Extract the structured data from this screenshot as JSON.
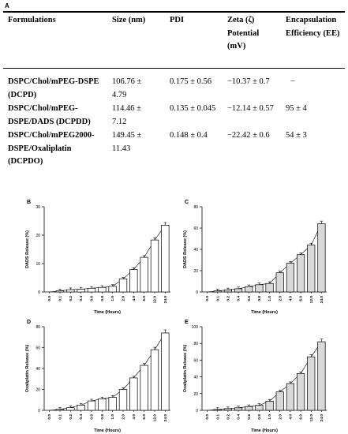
{
  "table": {
    "panel_label": "A",
    "headers": [
      "Formulations",
      "Size (nm)",
      "PDI",
      "Zeta (ζ) Potential (mV)",
      "Encapsulation Efficiency (EE)"
    ],
    "rows": [
      {
        "formulation": "DSPC/Chol/mPEG-DSPE (DCPD)",
        "size": "106.76 ± 4.79",
        "pdi": "0.175 ± 0.56",
        "zeta": "−10.37 ± 0.7",
        "ee": "−"
      },
      {
        "formulation": "DSPC/Chol/mPEG-DSPE/DADS (DCPDD)",
        "size": "114.46 ± 7.12",
        "pdi": "0.135 ± 0.045",
        "zeta": "−12.14 ± 0.57",
        "ee": "95 ± 4"
      },
      {
        "formulation": "DSPC/Chol/mPEG2000-DSPE/Oxaliplatin (DCPDO)",
        "size": "149.45 ± 11.43",
        "pdi": "0.148 ± 0.4",
        "zeta": "−22.42 ± 0.6",
        "ee": "54 ± 3"
      }
    ]
  },
  "chart_data": [
    {
      "panel": "B",
      "type": "bar",
      "xlabel": "Time (Hours)",
      "ylabel": "DADS Release (%)",
      "categories": [
        "0.0",
        "0.1",
        "0.2",
        "0.4",
        "0.6",
        "0.8",
        "1.0",
        "2.0",
        "4.0",
        "6.0",
        "12.0",
        "24.0"
      ],
      "values": [
        0,
        0.4,
        0.8,
        1.0,
        1.3,
        1.6,
        2.0,
        4.6,
        7.9,
        12.2,
        18.3,
        23.5
      ],
      "ylim": [
        0,
        30
      ],
      "yticks": [
        0,
        10,
        20,
        30
      ],
      "bar_color": "#ffffff"
    },
    {
      "panel": "C",
      "type": "bar",
      "xlabel": "Time (Hours)",
      "ylabel": "DADS Release (%)",
      "categories": [
        "0.0",
        "0.1",
        "0.2",
        "0.4",
        "0.6",
        "0.8",
        "1.0",
        "2.0",
        "4.0",
        "6.0",
        "12.0",
        "24.0"
      ],
      "values": [
        0,
        1.0,
        2.0,
        3.0,
        5.0,
        6.8,
        8.0,
        18.0,
        27.0,
        35.0,
        44.0,
        64.0
      ],
      "ylim": [
        0,
        80
      ],
      "yticks": [
        0,
        20,
        40,
        60,
        80
      ],
      "bar_color": "#d9d9d9"
    },
    {
      "panel": "D",
      "type": "bar",
      "xlabel": "Time (Hours)",
      "ylabel": "Oxaliplatin Release (%)",
      "categories": [
        "0.0",
        "0.1",
        "0.2",
        "0.4",
        "0.6",
        "0.8",
        "1.0",
        "2.0",
        "4.0",
        "6.0",
        "12.0",
        "24.0"
      ],
      "values": [
        0,
        1.0,
        2.5,
        5.0,
        9.0,
        11.0,
        12.5,
        20.0,
        31.0,
        43.0,
        58.0,
        74.0
      ],
      "ylim": [
        0,
        80
      ],
      "yticks": [
        0,
        20,
        40,
        60,
        80
      ],
      "bar_color": "#ffffff"
    },
    {
      "panel": "E",
      "type": "bar",
      "xlabel": "Time (Hours)",
      "ylabel": "Oxaliplatin Release (%)",
      "categories": [
        "0.0",
        "0.1",
        "0.2",
        "0.4",
        "0.6",
        "0.8",
        "1.0",
        "2.0",
        "4.0",
        "6.0",
        "12.0",
        "24.0"
      ],
      "values": [
        0,
        1.0,
        2.0,
        3.0,
        4.5,
        6.0,
        11.0,
        22.0,
        32.0,
        44.0,
        64.0,
        82.0
      ],
      "ylim": [
        0,
        100
      ],
      "yticks": [
        0,
        20,
        40,
        60,
        80,
        100
      ],
      "bar_color": "#d9d9d9"
    }
  ]
}
